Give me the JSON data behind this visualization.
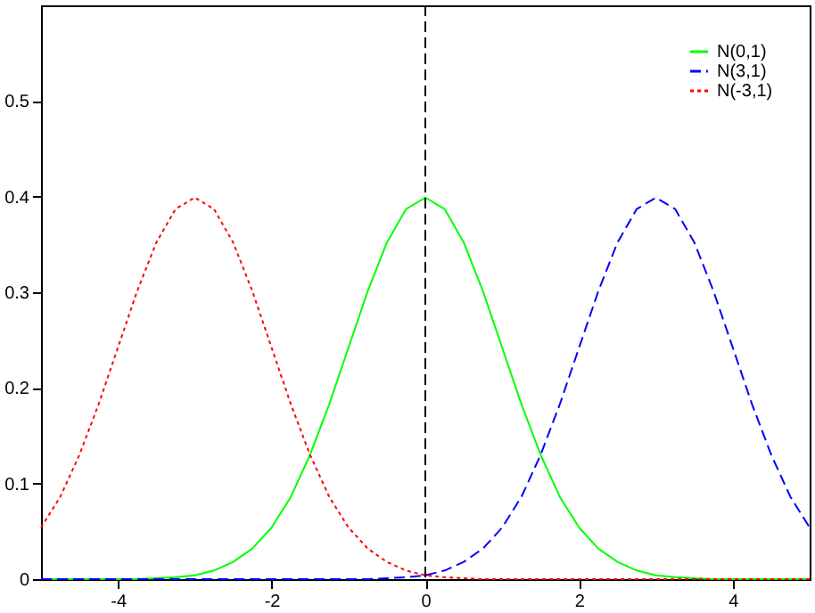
{
  "chart_data": {
    "type": "line",
    "x": [
      -5,
      -4.75,
      -4.5,
      -4.25,
      -4,
      -3.75,
      -3.5,
      -3.25,
      -3,
      -2.75,
      -2.5,
      -2.25,
      -2,
      -1.75,
      -1.5,
      -1.25,
      -1,
      -0.75,
      -0.5,
      -0.25,
      0,
      0.25,
      0.5,
      0.75,
      1,
      1.25,
      1.5,
      1.75,
      2,
      2.25,
      2.5,
      2.75,
      3,
      3.25,
      3.5,
      3.75,
      4,
      4.25,
      4.5,
      4.75,
      5
    ],
    "series": [
      {
        "name": "N(0,1)",
        "color": "#00ff00",
        "line_style": "solid",
        "values": [
          0,
          0,
          0,
          0,
          0,
          0,
          0.001,
          0.002,
          0.004,
          0.009,
          0.018,
          0.032,
          0.054,
          0.086,
          0.13,
          0.183,
          0.242,
          0.301,
          0.352,
          0.387,
          0.399,
          0.387,
          0.352,
          0.301,
          0.242,
          0.183,
          0.13,
          0.086,
          0.054,
          0.032,
          0.018,
          0.009,
          0.004,
          0.002,
          0.001,
          0,
          0,
          0,
          0,
          0,
          0
        ]
      },
      {
        "name": "N(3,1)",
        "color": "#0000ff",
        "line_style": "dashed",
        "values": [
          0,
          0,
          0,
          0,
          0,
          0,
          0,
          0,
          0,
          0,
          0,
          0,
          0,
          0,
          0,
          0,
          0,
          0,
          0.001,
          0.002,
          0.004,
          0.009,
          0.018,
          0.032,
          0.054,
          0.086,
          0.13,
          0.183,
          0.242,
          0.301,
          0.352,
          0.387,
          0.399,
          0.387,
          0.352,
          0.301,
          0.242,
          0.183,
          0.13,
          0.086,
          0.054
        ]
      },
      {
        "name": "N(-3,1)",
        "color": "#ff0000",
        "line_style": "dotted",
        "values": [
          0.054,
          0.086,
          0.13,
          0.183,
          0.242,
          0.301,
          0.352,
          0.387,
          0.399,
          0.387,
          0.352,
          0.301,
          0.242,
          0.183,
          0.13,
          0.086,
          0.054,
          0.032,
          0.018,
          0.009,
          0.004,
          0.002,
          0.001,
          0,
          0,
          0,
          0,
          0,
          0,
          0,
          0,
          0,
          0,
          0,
          0,
          0,
          0,
          0,
          0,
          0,
          0
        ]
      }
    ],
    "xlim": [
      -5,
      5
    ],
    "xticks": [
      -4,
      -2,
      0,
      2,
      4
    ],
    "ylim": [
      0,
      0.6
    ],
    "yticks": [
      0,
      0.1,
      0.2,
      0.3,
      0.4,
      0.5
    ],
    "ref_lines": [
      {
        "axis": "x",
        "value": 0,
        "color": "#000000",
        "line_style": "dashed"
      }
    ],
    "grid": false,
    "legend": "top right"
  }
}
